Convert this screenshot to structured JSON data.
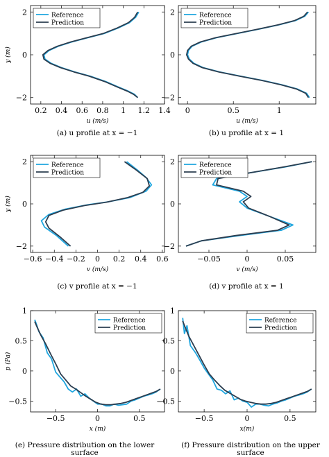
{
  "colors": {
    "reference": "#1fa6df",
    "prediction": "#2c3e50"
  },
  "captions": [
    "(a) u profile at x = −1",
    "(b) u profile at x = 1",
    "(c) v profile at x = −1",
    "(d) v profile at x = 1",
    "(e) Pressure distribution on the lower surface",
    "(f) Pressure distribution on the upper surface"
  ],
  "chart_data": [
    {
      "type": "line",
      "title": "",
      "xlabel": "u (m/s)",
      "ylabel": "y (m)",
      "xlim": [
        0.1,
        1.4
      ],
      "ylim": [
        -2.3,
        2.3
      ],
      "xticks": [
        0.2,
        0.4,
        0.6,
        0.8,
        1,
        1.2,
        1.4
      ],
      "xtick_labels": [
        "0.2",
        "0.4",
        "0.6",
        "0.8",
        "1",
        "1.2",
        "1.4"
      ],
      "yticks": [
        -2,
        0,
        2
      ],
      "ytick_labels": [
        "−2",
        "0",
        "2"
      ],
      "grid": false,
      "legend": "top-left",
      "series": [
        {
          "name": "Reference",
          "x": [
            1.15,
            1.12,
            1.06,
            0.95,
            0.82,
            0.66,
            0.5,
            0.37,
            0.28,
            0.23,
            0.24,
            0.3,
            0.4,
            0.53,
            0.68,
            0.83,
            0.95,
            1.05,
            1.11,
            1.14
          ],
          "y": [
            2,
            1.75,
            1.5,
            1.25,
            1.0,
            0.8,
            0.6,
            0.4,
            0.2,
            0.0,
            -0.2,
            -0.4,
            -0.6,
            -0.8,
            -1.0,
            -1.25,
            -1.5,
            -1.7,
            -1.85,
            -2
          ]
        },
        {
          "name": "Prediction",
          "x": [
            1.14,
            1.11,
            1.05,
            0.94,
            0.81,
            0.65,
            0.49,
            0.36,
            0.27,
            0.22,
            0.23,
            0.29,
            0.39,
            0.52,
            0.67,
            0.82,
            0.94,
            1.04,
            1.1,
            1.14
          ],
          "y": [
            2,
            1.75,
            1.5,
            1.25,
            1.0,
            0.8,
            0.6,
            0.4,
            0.2,
            0.0,
            -0.2,
            -0.4,
            -0.6,
            -0.8,
            -1.0,
            -1.25,
            -1.5,
            -1.7,
            -1.85,
            -2
          ]
        }
      ]
    },
    {
      "type": "line",
      "title": "",
      "xlabel": "u (m/s)",
      "ylabel": "",
      "xlim": [
        -0.1,
        1.4
      ],
      "ylim": [
        -2.3,
        2.3
      ],
      "xticks": [
        0,
        0.5,
        1
      ],
      "xtick_labels": [
        "0",
        "0.5",
        "1"
      ],
      "yticks": [
        -2,
        0,
        2
      ],
      "ytick_labels": [
        "−2",
        "0",
        "2"
      ],
      "grid": false,
      "legend": "top-left",
      "series": [
        {
          "name": "Reference",
          "x": [
            1.32,
            1.28,
            1.18,
            1.0,
            0.78,
            0.55,
            0.32,
            0.15,
            0.05,
            0.01,
            0.0,
            0.02,
            0.07,
            0.17,
            0.35,
            0.58,
            0.82,
            1.03,
            1.2,
            1.3,
            1.33
          ],
          "y": [
            2,
            1.8,
            1.6,
            1.4,
            1.2,
            1.0,
            0.8,
            0.6,
            0.4,
            0.2,
            0.0,
            -0.2,
            -0.4,
            -0.6,
            -0.8,
            -1.0,
            -1.2,
            -1.4,
            -1.6,
            -1.8,
            -2
          ]
        },
        {
          "name": "Prediction",
          "x": [
            1.31,
            1.27,
            1.17,
            0.99,
            0.77,
            0.54,
            0.31,
            0.14,
            0.04,
            0.0,
            -0.01,
            0.01,
            0.06,
            0.16,
            0.34,
            0.57,
            0.81,
            1.02,
            1.19,
            1.29,
            1.32
          ],
          "y": [
            2,
            1.8,
            1.6,
            1.4,
            1.2,
            1.0,
            0.8,
            0.6,
            0.4,
            0.2,
            0.0,
            -0.2,
            -0.4,
            -0.6,
            -0.8,
            -1.0,
            -1.2,
            -1.4,
            -1.6,
            -1.8,
            -2
          ]
        }
      ]
    },
    {
      "type": "line",
      "title": "",
      "xlabel": "v (m/s)",
      "ylabel": "y (m)",
      "xlim": [
        -0.62,
        0.62
      ],
      "ylim": [
        -2.3,
        2.3
      ],
      "xticks": [
        -0.6,
        -0.4,
        -0.2,
        0,
        0.2,
        0.4,
        0.6
      ],
      "xtick_labels": [
        "−0.6",
        "−0.4",
        "−0.2",
        "0",
        "0.2",
        "0.4",
        "0.6"
      ],
      "yticks": [
        -2,
        0,
        2
      ],
      "ytick_labels": [
        "−2",
        "0",
        "2"
      ],
      "grid": false,
      "legend": "top-left",
      "series": [
        {
          "name": "Reference",
          "x": [
            0.27,
            0.37,
            0.45,
            0.5,
            0.45,
            0.3,
            0.1,
            -0.1,
            -0.3,
            -0.45,
            -0.52,
            -0.49,
            -0.38,
            -0.27
          ],
          "y": [
            2,
            1.6,
            1.25,
            0.9,
            0.6,
            0.3,
            0.1,
            -0.05,
            -0.25,
            -0.5,
            -0.8,
            -1.1,
            -1.5,
            -2
          ]
        },
        {
          "name": "Prediction",
          "x": [
            0.25,
            0.36,
            0.46,
            0.48,
            0.42,
            0.28,
            0.08,
            -0.12,
            -0.32,
            -0.45,
            -0.48,
            -0.45,
            -0.35,
            -0.25
          ],
          "y": [
            2,
            1.6,
            1.2,
            0.85,
            0.55,
            0.3,
            0.08,
            -0.08,
            -0.3,
            -0.55,
            -0.85,
            -1.15,
            -1.55,
            -2
          ]
        }
      ]
    },
    {
      "type": "line",
      "title": "",
      "xlabel": "v (m/s)",
      "ylabel": "",
      "xlim": [
        -0.09,
        0.09
      ],
      "ylim": [
        -2.3,
        2.3
      ],
      "xticks": [
        -0.05,
        0,
        0.05
      ],
      "xtick_labels": [
        "−0.05",
        "0",
        "0.05"
      ],
      "yticks": [
        -2,
        0,
        2
      ],
      "ytick_labels": [
        "−2",
        "0",
        "2"
      ],
      "grid": false,
      "legend": "top-left",
      "series": [
        {
          "name": "Reference",
          "x": [
            0.085,
            0.05,
            0.0,
            -0.04,
            -0.045,
            -0.01,
            0.0,
            -0.01,
            0.0,
            0.03,
            0.06,
            0.045,
            -0.01,
            -0.06,
            -0.08
          ],
          "y": [
            2,
            1.75,
            1.45,
            1.2,
            0.9,
            0.6,
            0.35,
            0.1,
            -0.2,
            -0.6,
            -1.0,
            -1.25,
            -1.5,
            -1.75,
            -2
          ]
        },
        {
          "name": "Prediction",
          "x": [
            0.085,
            0.048,
            0.0,
            -0.038,
            -0.04,
            -0.005,
            0.005,
            -0.005,
            0.002,
            0.03,
            0.055,
            0.04,
            -0.015,
            -0.06,
            -0.08
          ],
          "y": [
            2,
            1.75,
            1.45,
            1.2,
            0.9,
            0.6,
            0.35,
            0.1,
            -0.2,
            -0.6,
            -1.0,
            -1.25,
            -1.5,
            -1.75,
            -2
          ]
        }
      ]
    },
    {
      "type": "line",
      "title": "",
      "xlabel": "x (m)",
      "ylabel": "p (Pa)",
      "xlim": [
        -0.8,
        0.8
      ],
      "ylim": [
        -0.68,
        1.0
      ],
      "xticks": [
        -0.5,
        0,
        0.5
      ],
      "xtick_labels": [
        "−0.5",
        "0",
        "0.5"
      ],
      "yticks": [
        -0.5,
        0,
        0.5,
        1
      ],
      "ytick_labels": [
        "−0.5",
        "0",
        "0.5",
        "1"
      ],
      "grid": false,
      "legend": "top-right",
      "series": [
        {
          "name": "Reference",
          "x": [
            -0.75,
            -0.73,
            -0.7,
            -0.65,
            -0.6,
            -0.55,
            -0.5,
            -0.45,
            -0.4,
            -0.35,
            -0.3,
            -0.25,
            -0.2,
            -0.15,
            -0.1,
            -0.05,
            0.0,
            0.05,
            0.1,
            0.15,
            0.2,
            0.25,
            0.3,
            0.35,
            0.4,
            0.45,
            0.5,
            0.55,
            0.6,
            0.65,
            0.7,
            0.75
          ],
          "y": [
            0.85,
            0.78,
            0.65,
            0.55,
            0.3,
            0.2,
            -0.02,
            -0.1,
            -0.18,
            -0.3,
            -0.35,
            -0.3,
            -0.42,
            -0.38,
            -0.45,
            -0.5,
            -0.55,
            -0.55,
            -0.58,
            -0.58,
            -0.55,
            -0.57,
            -0.56,
            -0.55,
            -0.5,
            -0.48,
            -0.45,
            -0.42,
            -0.4,
            -0.38,
            -0.35,
            -0.3
          ]
        },
        {
          "name": "Prediction",
          "x": [
            -0.75,
            -0.72,
            -0.68,
            -0.62,
            -0.56,
            -0.5,
            -0.44,
            -0.38,
            -0.32,
            -0.26,
            -0.2,
            -0.14,
            -0.08,
            -0.02,
            0.04,
            0.1,
            0.16,
            0.22,
            0.28,
            0.34,
            0.4,
            0.46,
            0.52,
            0.58,
            0.64,
            0.7,
            0.75
          ],
          "y": [
            0.82,
            0.72,
            0.6,
            0.45,
            0.28,
            0.12,
            -0.05,
            -0.15,
            -0.25,
            -0.3,
            -0.36,
            -0.42,
            -0.47,
            -0.52,
            -0.55,
            -0.56,
            -0.56,
            -0.55,
            -0.54,
            -0.52,
            -0.49,
            -0.46,
            -0.43,
            -0.4,
            -0.37,
            -0.34,
            -0.3
          ]
        }
      ]
    },
    {
      "type": "line",
      "title": "",
      "xlabel": "x(m)",
      "ylabel": "",
      "xlim": [
        -0.8,
        0.8
      ],
      "ylim": [
        -0.68,
        1.0
      ],
      "xticks": [
        -0.5,
        0,
        0.5
      ],
      "xtick_labels": [
        "−0.5",
        "0",
        "0.5"
      ],
      "yticks": [
        -0.5,
        0,
        0.5,
        1
      ],
      "ytick_labels": [
        "−0.5",
        "0",
        "0.5",
        "1"
      ],
      "grid": false,
      "legend": "top-right",
      "series": [
        {
          "name": "Reference",
          "x": [
            -0.75,
            -0.73,
            -0.7,
            -0.66,
            -0.6,
            -0.55,
            -0.5,
            -0.45,
            -0.4,
            -0.35,
            -0.3,
            -0.25,
            -0.2,
            -0.15,
            -0.1,
            -0.05,
            0.0,
            0.05,
            0.1,
            0.15,
            0.2,
            0.25,
            0.3,
            0.35,
            0.4,
            0.45,
            0.5,
            0.55,
            0.6,
            0.65,
            0.7,
            0.75
          ],
          "y": [
            0.88,
            0.62,
            0.75,
            0.42,
            0.3,
            0.18,
            0.05,
            -0.05,
            -0.15,
            -0.3,
            -0.32,
            -0.38,
            -0.33,
            -0.48,
            -0.45,
            -0.5,
            -0.52,
            -0.6,
            -0.55,
            -0.55,
            -0.57,
            -0.58,
            -0.55,
            -0.53,
            -0.5,
            -0.48,
            -0.45,
            -0.42,
            -0.4,
            -0.38,
            -0.35,
            -0.3
          ]
        },
        {
          "name": "Prediction",
          "x": [
            -0.75,
            -0.72,
            -0.68,
            -0.62,
            -0.56,
            -0.5,
            -0.44,
            -0.38,
            -0.32,
            -0.26,
            -0.2,
            -0.14,
            -0.08,
            -0.02,
            0.04,
            0.1,
            0.16,
            0.22,
            0.28,
            0.34,
            0.4,
            0.46,
            0.52,
            0.58,
            0.64,
            0.7,
            0.75
          ],
          "y": [
            0.83,
            0.72,
            0.58,
            0.42,
            0.26,
            0.1,
            -0.05,
            -0.15,
            -0.24,
            -0.32,
            -0.37,
            -0.42,
            -0.47,
            -0.5,
            -0.52,
            -0.54,
            -0.55,
            -0.55,
            -0.54,
            -0.52,
            -0.49,
            -0.46,
            -0.43,
            -0.4,
            -0.37,
            -0.34,
            -0.3
          ]
        }
      ]
    }
  ]
}
